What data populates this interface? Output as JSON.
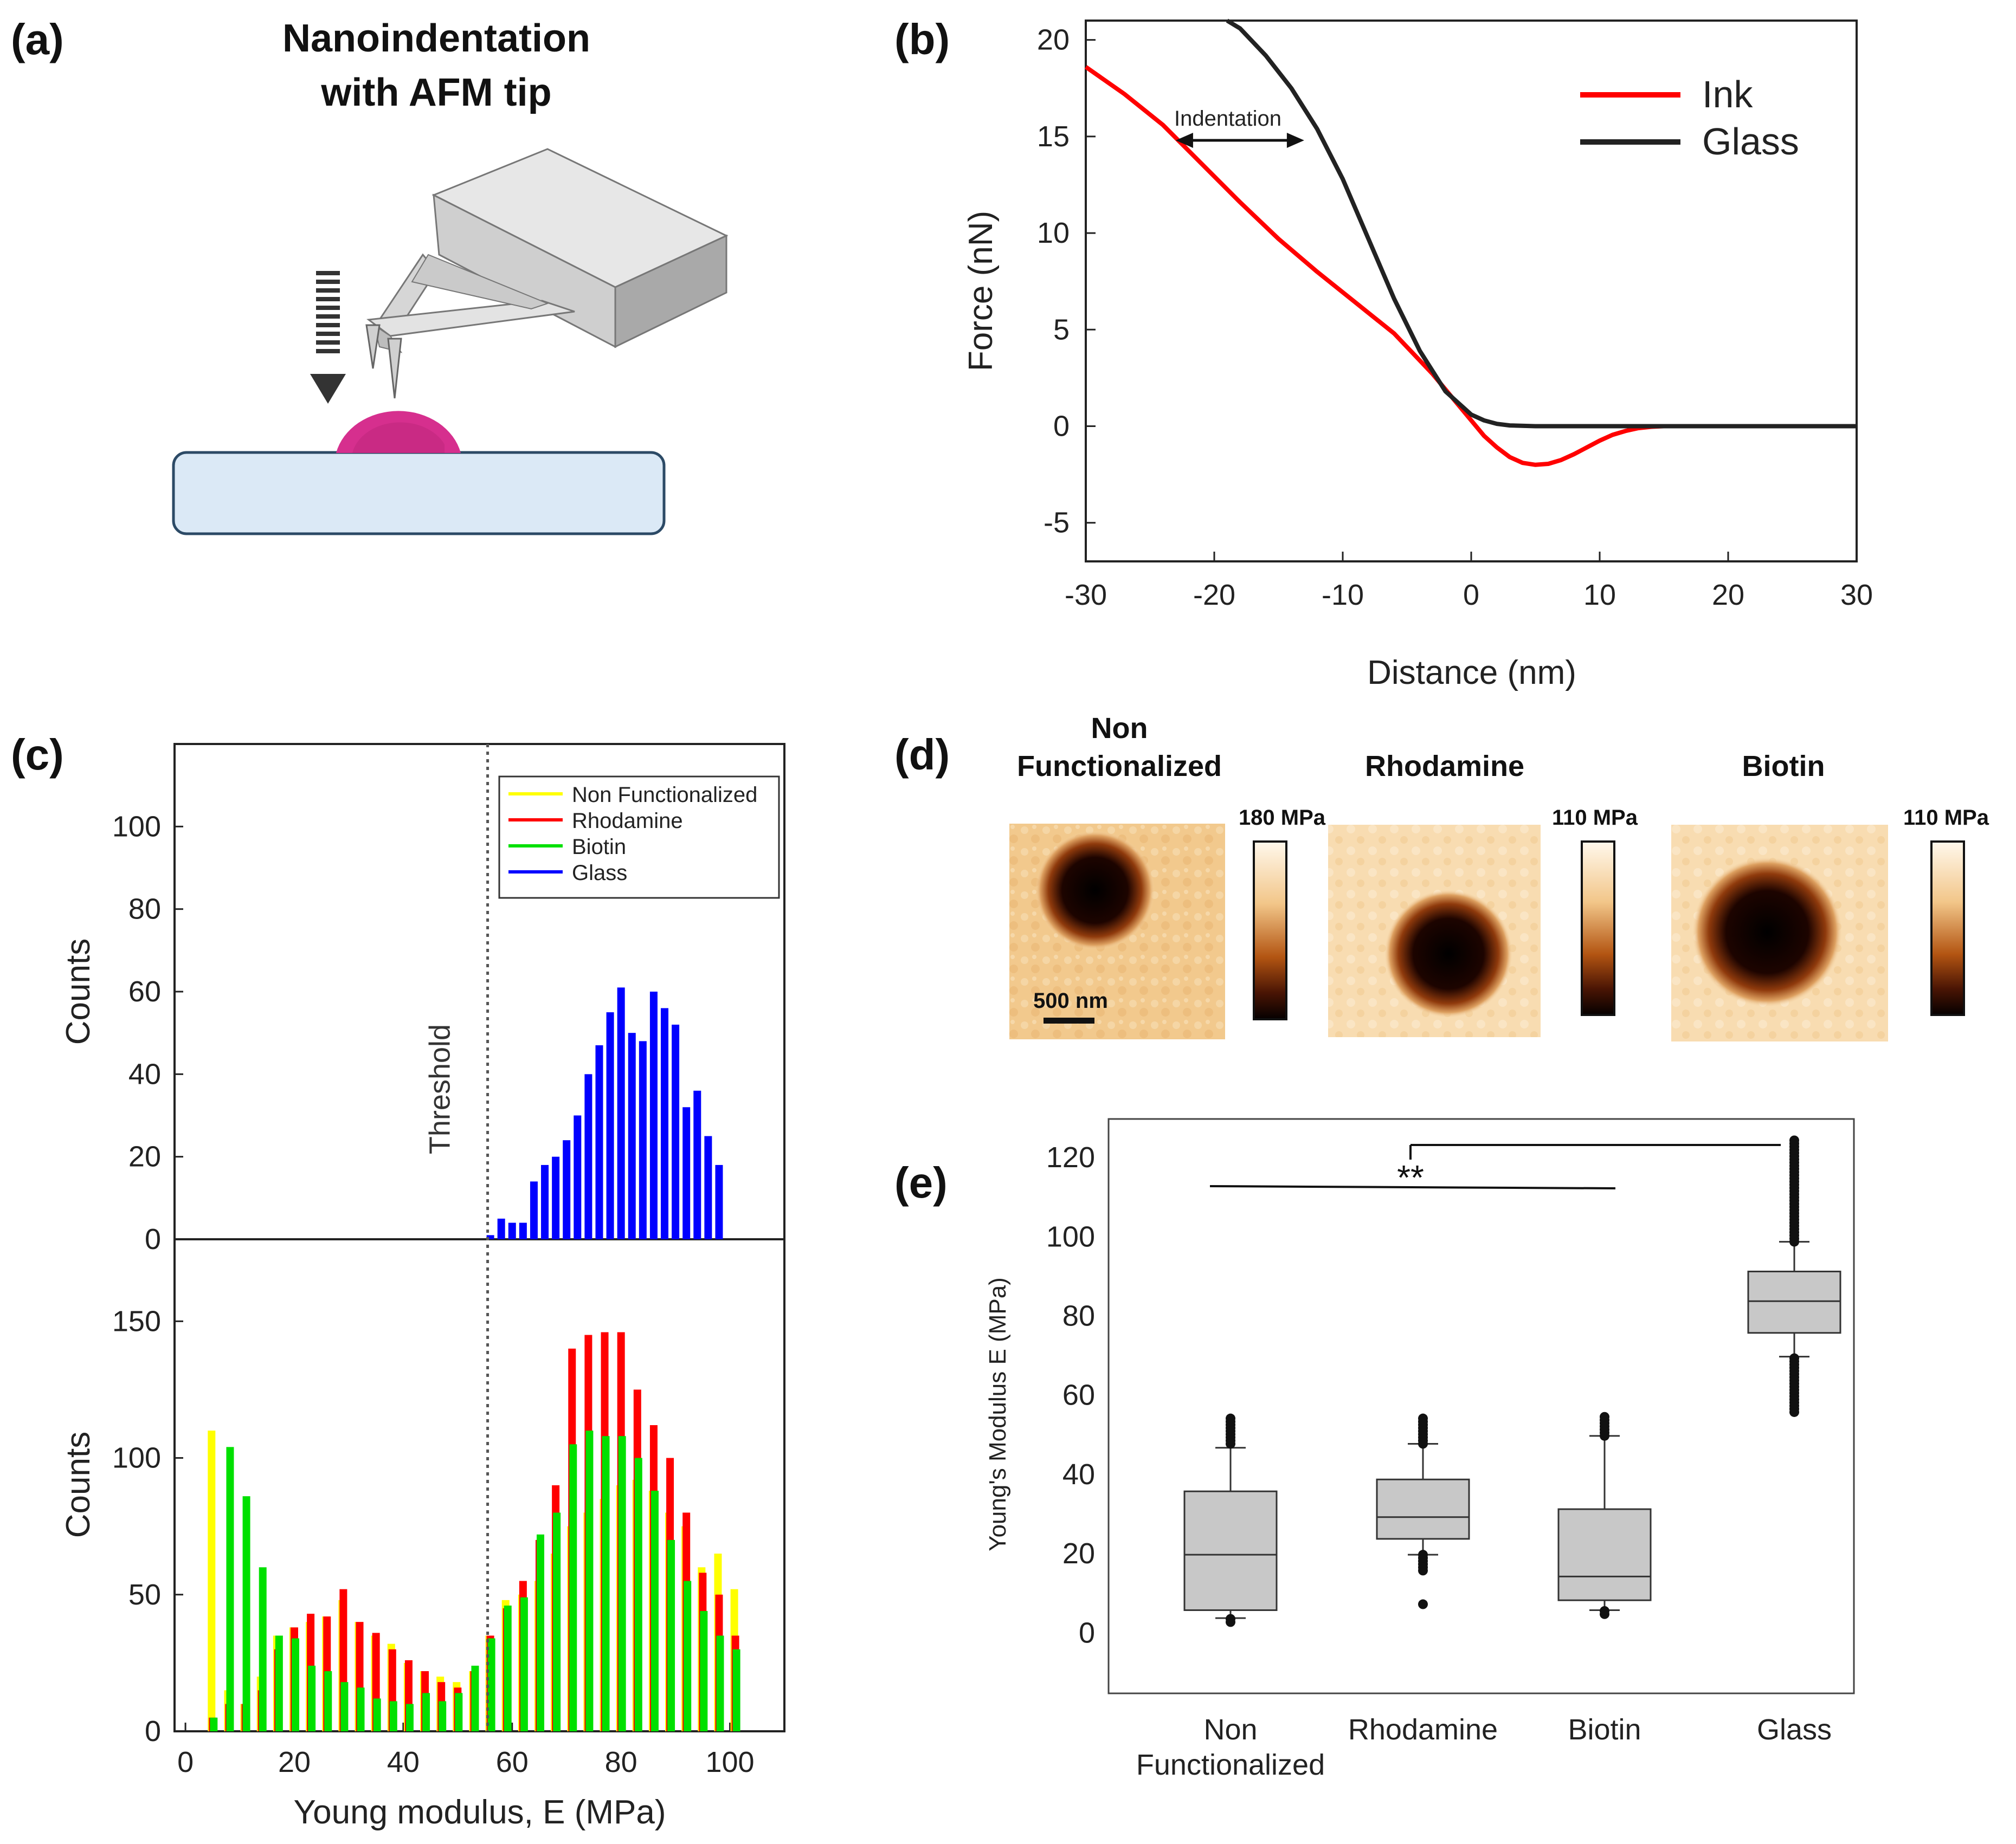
{
  "panel_labels": {
    "a": "(a)",
    "b": "(b)",
    "c": "(c)",
    "d": "(d)",
    "e": "(e)"
  },
  "colors": {
    "ink": "#ff0000",
    "glass_curve": "#222222",
    "nonfunc": "#ffff00",
    "rhodamine": "#ff0000",
    "biotin": "#00e000",
    "glass_hist": "#0000ff",
    "drop": "#d62f8e",
    "substrate": "#dbe9f6",
    "substrate_border": "#2c4a66",
    "box": "#c8c8c8"
  },
  "panel_a": {
    "title_line1": "Nanoindentation",
    "title_line2": "with AFM tip",
    "tip_icon": "afm-cantilever-icon"
  },
  "panel_d": {
    "maps": [
      {
        "title_line1": "Non",
        "title_line2": "Functionalized",
        "scale_max": "180 MPa",
        "scalebar": "500 nm"
      },
      {
        "title_line1": "",
        "title_line2": "Rhodamine",
        "scale_max": "110 MPa"
      },
      {
        "title_line1": "",
        "title_line2": "Biotin",
        "scale_max": "110 MPa"
      }
    ]
  },
  "chart_data": [
    {
      "id": "b",
      "type": "line",
      "xlabel": "Distance (nm)",
      "ylabel": "Force (nN)",
      "xlim": [
        -30,
        30
      ],
      "ylim": [
        -7,
        21
      ],
      "xticks": [
        -30,
        -20,
        -10,
        0,
        10,
        20,
        30
      ],
      "yticks": [
        -5,
        0,
        5,
        10,
        15,
        20
      ],
      "annotation": "Indentation",
      "annotation_span": [
        -23,
        -13
      ],
      "annotation_y": 14.8,
      "series": [
        {
          "name": "Ink",
          "color": "#ff0000",
          "x": [
            -30,
            -27,
            -24,
            -21,
            -18,
            -15,
            -12,
            -9,
            -6,
            -3,
            0,
            1,
            2,
            3,
            4,
            5,
            6,
            7,
            8,
            9,
            10,
            11,
            12,
            13,
            14,
            15,
            18,
            22,
            26,
            30
          ],
          "y": [
            18.6,
            17.2,
            15.6,
            13.6,
            11.6,
            9.7,
            8.0,
            6.4,
            4.8,
            2.7,
            0.3,
            -0.5,
            -1.1,
            -1.6,
            -1.9,
            -2.0,
            -1.95,
            -1.75,
            -1.45,
            -1.1,
            -0.75,
            -0.45,
            -0.25,
            -0.1,
            -0.03,
            0.0,
            0.0,
            0.0,
            0.0,
            0.0
          ]
        },
        {
          "name": "Glass",
          "color": "#222222",
          "x": [
            -19,
            -18,
            -16,
            -14,
            -12,
            -10,
            -8,
            -6,
            -4,
            -2,
            0,
            1,
            2,
            3,
            5,
            8,
            12,
            16,
            20,
            25,
            30
          ],
          "y": [
            21,
            20.6,
            19.2,
            17.5,
            15.4,
            12.8,
            9.7,
            6.6,
            3.9,
            1.8,
            0.6,
            0.3,
            0.12,
            0.04,
            0.0,
            0.0,
            0.0,
            0.0,
            0.0,
            0.0,
            0.0
          ]
        }
      ]
    },
    {
      "id": "c-top",
      "type": "bar",
      "ylabel": "Counts",
      "xlim": [
        -2,
        110
      ],
      "ylim": [
        0,
        120
      ],
      "yticks": [
        0,
        20,
        40,
        60,
        80,
        100
      ],
      "threshold": 55.5,
      "threshold_label": "Threshold",
      "legend": [
        "Non Functionalized",
        "Rhodamine",
        "Biotin",
        "Glass"
      ],
      "series": [
        {
          "name": "Glass",
          "color": "#0000ff",
          "x": [
            56,
            58,
            60,
            62,
            64,
            66,
            68,
            70,
            72,
            74,
            76,
            78,
            80,
            82,
            84,
            86,
            88,
            90,
            92,
            94,
            96,
            98,
            100
          ],
          "values": [
            1,
            5,
            4,
            4,
            14,
            18,
            20,
            24,
            30,
            40,
            47,
            55,
            61,
            50,
            48,
            60,
            56,
            52,
            32,
            36,
            25,
            18,
            0
          ]
        }
      ]
    },
    {
      "id": "c-bottom",
      "type": "bar",
      "xlabel": "Young modulus, E (MPa)",
      "ylabel": "Counts",
      "xlim": [
        -2,
        110
      ],
      "ylim": [
        0,
        180
      ],
      "xticks": [
        0,
        20,
        40,
        60,
        80,
        100
      ],
      "yticks": [
        0,
        50,
        100,
        150
      ],
      "x": [
        5,
        8,
        11,
        14,
        17,
        20,
        23,
        26,
        29,
        32,
        35,
        38,
        41,
        44,
        47,
        50,
        53,
        56,
        59,
        62,
        65,
        68,
        71,
        74,
        77,
        80,
        83,
        86,
        89,
        92,
        95,
        98,
        101
      ],
      "series": [
        {
          "name": "Non Functionalized",
          "color": "#ffff00",
          "values": [
            110,
            15,
            10,
            20,
            35,
            38,
            40,
            42,
            48,
            40,
            35,
            32,
            25,
            22,
            20,
            18,
            22,
            35,
            48,
            50,
            55,
            65,
            75,
            80,
            85,
            90,
            92,
            88,
            80,
            75,
            60,
            65,
            52
          ]
        },
        {
          "name": "Rhodamine",
          "color": "#ff0000",
          "values": [
            5,
            10,
            10,
            15,
            30,
            38,
            43,
            42,
            52,
            40,
            36,
            30,
            26,
            22,
            18,
            16,
            22,
            35,
            45,
            55,
            70,
            90,
            140,
            145,
            146,
            146,
            125,
            112,
            100,
            80,
            58,
            50,
            35
          ]
        },
        {
          "name": "Biotin",
          "color": "#00e000",
          "values": [
            5,
            104,
            86,
            60,
            35,
            34,
            24,
            22,
            18,
            16,
            12,
            11,
            10,
            14,
            11,
            14,
            24,
            34,
            46,
            49,
            72,
            80,
            105,
            110,
            108,
            108,
            100,
            88,
            70,
            55,
            44,
            35,
            30
          ]
        }
      ]
    },
    {
      "id": "e",
      "type": "box",
      "ylabel": "Young's Modulus E (MPa)",
      "ylim": [
        -15,
        130
      ],
      "yticks": [
        0,
        20,
        40,
        60,
        80,
        100,
        120
      ],
      "significance": "**",
      "categories": [
        {
          "line1": "Non",
          "line2": "Functionalized",
          "min": 4,
          "q1": 6,
          "median": 20,
          "q3": 36,
          "max": 47,
          "out_lo": [
            3,
            4
          ],
          "out_hi": [
            48,
            55
          ]
        },
        {
          "line1": "Rhodamine",
          "line2": "",
          "min": 20,
          "q1": 24,
          "median": 29.5,
          "q3": 39,
          "max": 48,
          "out_lo": [
            16,
            20,
            7.5
          ],
          "out_hi": [
            48,
            55
          ]
        },
        {
          "line1": "Biotin",
          "line2": "",
          "min": 6,
          "q1": 8.5,
          "median": 14.5,
          "q3": 31.5,
          "max": 50,
          "out_lo": [
            5,
            6
          ],
          "out_hi": [
            50,
            55
          ]
        },
        {
          "line1": "Glass",
          "line2": "",
          "min": 70,
          "q1": 76,
          "median": 84,
          "q3": 91.5,
          "max": 99,
          "out_lo": [
            56,
            70
          ],
          "out_hi": [
            99,
            125
          ]
        }
      ]
    }
  ]
}
